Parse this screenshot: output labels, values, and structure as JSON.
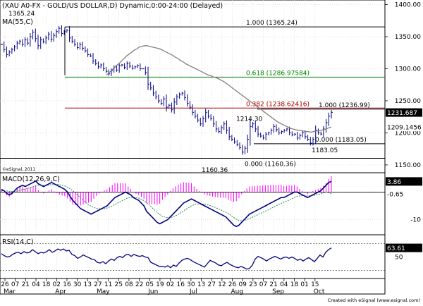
{
  "chart_data": {
    "type": "line",
    "title": "(XAU A0-FX - GOLD/US DOLLAR,D) Dynamic,0:00-24:00 (Delayed)",
    "watermark": "©eSignal, 2011",
    "footer": "Created with eSignal (www.esignal.com)",
    "colors": {
      "background": "#ffffff",
      "grid": "#d3d3d3",
      "price_bar": "#000080",
      "ma": "#808080",
      "fib_black": "#000000",
      "fib_green": "#008000",
      "fib_red": "#a00000",
      "macd": "#000080",
      "signal": "#2e8b57",
      "histogram": "#ff00ff",
      "rsi": "#000080",
      "label_dark": "#000000",
      "label_text": "#ffffff"
    },
    "x_axis": {
      "date_ticks": [
        "26",
        "07",
        "21",
        "04",
        "18",
        "02",
        "16",
        "30",
        "13",
        "27",
        "11",
        "25",
        "08",
        "22",
        "05",
        "19",
        "02",
        "16",
        "30",
        "13",
        "27",
        "12",
        "26",
        "09",
        "23",
        "07",
        "21",
        "04",
        "18",
        "01",
        "15"
      ],
      "month_labels": [
        "Mar",
        "Apr",
        "May",
        "Jun",
        "Jul",
        "Aug",
        "Sep",
        "Oct"
      ]
    },
    "price_panel": {
      "ma_label": "MA(55,C)",
      "ylim": [
        1140,
        1405
      ],
      "y_ticks": [
        "1400.00",
        "1350.00",
        "1300.00",
        "1250.00",
        "1200.00",
        "1150.00"
      ],
      "y_tick_values": [
        1400,
        1350,
        1300,
        1250,
        1200,
        1150
      ],
      "fib_levels": [
        {
          "label": "1.000 (1365.24)",
          "value": 1365.24,
          "color": "black"
        },
        {
          "label": "0.618 (1286.97584)",
          "value": 1286.98,
          "color": "green"
        },
        {
          "label": "0.382 (1238.62416)",
          "value": 1238.62,
          "color": "red"
        },
        {
          "label": "1.000 (1236.99)",
          "value": 1236.99,
          "color": "black"
        },
        {
          "label": "0.000 (1183.05)",
          "value": 1183.05,
          "color": "black"
        },
        {
          "label": "0.000 (1160.36)",
          "value": 1160.36,
          "color": "black"
        }
      ],
      "annotations": [
        {
          "text": "1365.24",
          "value": 1365.24
        },
        {
          "text": "1214.30",
          "value": 1214.3
        },
        {
          "text": "1183.05",
          "value": 1183.05
        },
        {
          "text": "1160.36",
          "value": 1160.36
        }
      ],
      "last_price_label": "1231.687",
      "last_price": 1231.69,
      "ma_last_label": "1209.1456",
      "ma_last": 1209.15,
      "close_series": [
        1338,
        1330,
        1322,
        1326,
        1330,
        1334,
        1340,
        1343,
        1338,
        1345,
        1340,
        1350,
        1357,
        1347,
        1336,
        1345,
        1342,
        1348,
        1354,
        1346,
        1352,
        1358,
        1363,
        1355,
        1358,
        1360,
        1348,
        1343,
        1338,
        1333,
        1338,
        1332,
        1328,
        1322,
        1320,
        1312,
        1308,
        1303,
        1306,
        1300,
        1296,
        1292,
        1297,
        1302,
        1298,
        1305,
        1306,
        1302,
        1308,
        1304,
        1301,
        1303,
        1305,
        1300,
        1300,
        1294,
        1276,
        1270,
        1262,
        1256,
        1250,
        1246,
        1253,
        1240,
        1243,
        1236,
        1248,
        1256,
        1260,
        1262,
        1255,
        1246,
        1240,
        1232,
        1226,
        1220,
        1214,
        1222,
        1232,
        1226,
        1222,
        1214,
        1206,
        1202,
        1208,
        1214,
        1204,
        1194,
        1190,
        1186,
        1182,
        1177,
        1170,
        1176,
        1190,
        1210,
        1214,
        1206,
        1198,
        1195,
        1192,
        1198,
        1200,
        1204,
        1210,
        1205,
        1200,
        1202,
        1204,
        1206,
        1200,
        1197,
        1198,
        1192,
        1196,
        1200,
        1194,
        1190,
        1184,
        1190,
        1204,
        1200,
        1198,
        1206,
        1216,
        1226,
        1232
      ],
      "ma_series": [
        1290,
        1293,
        1297,
        1301,
        1305,
        1308,
        1312,
        1316,
        1320,
        1323,
        1326,
        1329,
        1331,
        1334,
        1335,
        1336,
        1336,
        1335,
        1334,
        1333,
        1332,
        1331,
        1329,
        1327,
        1325,
        1323,
        1321,
        1318,
        1316,
        1313,
        1311,
        1308,
        1306,
        1304,
        1302,
        1300,
        1298,
        1296,
        1294,
        1292,
        1290,
        1289,
        1287,
        1286,
        1284,
        1282,
        1280,
        1277,
        1274,
        1271,
        1268,
        1265,
        1262,
        1259,
        1256,
        1253,
        1250,
        1247,
        1244,
        1241,
        1238,
        1235,
        1232,
        1229,
        1226,
        1223,
        1220,
        1217,
        1215,
        1213,
        1211,
        1209,
        1207,
        1206,
        1205,
        1204,
        1204,
        1203,
        1202,
        1202,
        1201,
        1202,
        1203,
        1203,
        1204,
        1205,
        1206,
        1208,
        1209
      ]
    },
    "macd_panel": {
      "label": "MACD(12,26,9,C)",
      "ylim": [
        -15,
        6
      ],
      "y_ticks": [
        "0.00",
        "-10"
      ],
      "y_tick_values": [
        0,
        -10
      ],
      "zero_value": 0,
      "macd_last_label": "3.86",
      "macd_last": 3.86,
      "signal_last_label": "-0.65",
      "signal_last": -0.65,
      "macd_series": [
        1,
        0.5,
        -0.5,
        -1,
        -0.5,
        0.5,
        1.5,
        2,
        2.5,
        2,
        2.5,
        3,
        3.5,
        4,
        3,
        2.5,
        2,
        2.5,
        3,
        3.5,
        3,
        2.5,
        2,
        1.5,
        1,
        0,
        -1.5,
        -3,
        -4,
        -5,
        -6,
        -6.5,
        -7,
        -7.5,
        -8,
        -7.5,
        -7,
        -6.5,
        -6,
        -5.5,
        -5,
        -4,
        -3,
        -2,
        -1.5,
        -1,
        -0.5,
        0,
        -0.5,
        -1,
        -2,
        -2.5,
        -3,
        -4,
        -5,
        -7,
        -8,
        -9,
        -10,
        -11,
        -11.5,
        -11,
        -10.5,
        -10,
        -9,
        -8,
        -7,
        -6,
        -5,
        -4,
        -3.5,
        -3,
        -2.5,
        -3,
        -3.5,
        -4,
        -4.5,
        -5,
        -5.5,
        -6,
        -6.5,
        -7,
        -7.5,
        -8,
        -8.5,
        -9,
        -10,
        -11,
        -12,
        -12.5,
        -12,
        -11,
        -10,
        -9,
        -8,
        -7.5,
        -7,
        -6.5,
        -6,
        -5.5,
        -5,
        -4.5,
        -4,
        -3.5,
        -3,
        -2.5,
        -2,
        -2,
        -1.5,
        -1,
        -0.5,
        0,
        0,
        -0.5,
        -1,
        -1.5,
        -2,
        -1.5,
        -1,
        -0.5,
        0,
        0.5,
        1.5,
        2.5,
        3.5,
        3.86
      ],
      "signal_series": [
        0.5,
        0.5,
        0.4,
        0.3,
        0.2,
        0.2,
        0.4,
        0.6,
        0.9,
        1.1,
        1.4,
        1.7,
        2,
        2.3,
        2.5,
        2.5,
        2.4,
        2.5,
        2.6,
        2.7,
        2.8,
        2.8,
        2.7,
        2.5,
        2.2,
        1.8,
        1.2,
        0.5,
        -0.3,
        -1.2,
        -2.2,
        -3,
        -3.8,
        -4.5,
        -5.2,
        -5.6,
        -5.9,
        -6.1,
        -6.1,
        -6,
        -5.8,
        -5.4,
        -5,
        -4.5,
        -4,
        -3.5,
        -3,
        -2.5,
        -2.1,
        -1.9,
        -1.9,
        -2,
        -2.2,
        -2.6,
        -3.1,
        -3.9,
        -4.7,
        -5.6,
        -6.5,
        -7.4,
        -8.2,
        -8.8,
        -9.1,
        -9.3,
        -9.3,
        -9,
        -8.6,
        -8.1,
        -7.5,
        -6.8,
        -6.2,
        -5.6,
        -5,
        -4.6,
        -4.4,
        -4.3,
        -4.3,
        -4.4,
        -4.6,
        -4.9,
        -5.2,
        -5.6,
        -6,
        -6.4,
        -6.9,
        -7.3,
        -7.8,
        -8.5,
        -9.2,
        -9.9,
        -10.3,
        -10.4,
        -10.3,
        -10,
        -9.6,
        -9.2,
        -8.7,
        -8.3,
        -7.8,
        -7.4,
        -6.9,
        -6.5,
        -6,
        -5.5,
        -5,
        -4.6,
        -4.1,
        -3.7,
        -3.3,
        -2.9,
        -2.4,
        -2,
        -1.6,
        -1.4,
        -1.3,
        -1.3,
        -1.4,
        -1.4,
        -1.3,
        -1.1,
        -0.9,
        -0.6,
        -0.3,
        0,
        -0.2,
        -0.65
      ]
    },
    "rsi_panel": {
      "label": "RSI(14,C)",
      "ylim": [
        20,
        80
      ],
      "y_ticks": [
        "50"
      ],
      "y_tick_values": [
        50
      ],
      "upper_band": 70,
      "lower_band": 30,
      "last_label": "63.61",
      "last": 63.61,
      "rsi_series": [
        55,
        52,
        50,
        51,
        54,
        56,
        57,
        55,
        58,
        56,
        57,
        61,
        58,
        55,
        57,
        56,
        58,
        61,
        57,
        59,
        62,
        60,
        62,
        59,
        60,
        54,
        52,
        48,
        50,
        53,
        51,
        49,
        47,
        46,
        42,
        41,
        43,
        40,
        44,
        47,
        45,
        49,
        51,
        49,
        53,
        54,
        51,
        54,
        52,
        51,
        52,
        50,
        49,
        42,
        40,
        38,
        36,
        36,
        35,
        37,
        34,
        38,
        36,
        41,
        45,
        47,
        48,
        46,
        43,
        41,
        39,
        37,
        35,
        40,
        45,
        43,
        41,
        38,
        37,
        40,
        42,
        39,
        37,
        35,
        34,
        36,
        34,
        32,
        33,
        38,
        47,
        51,
        49,
        47,
        44,
        47,
        49,
        51,
        49,
        47,
        49,
        50,
        48,
        50,
        48,
        45,
        47,
        44,
        47,
        49,
        46,
        43,
        48,
        53,
        50,
        57,
        61,
        63.61
      ]
    }
  }
}
